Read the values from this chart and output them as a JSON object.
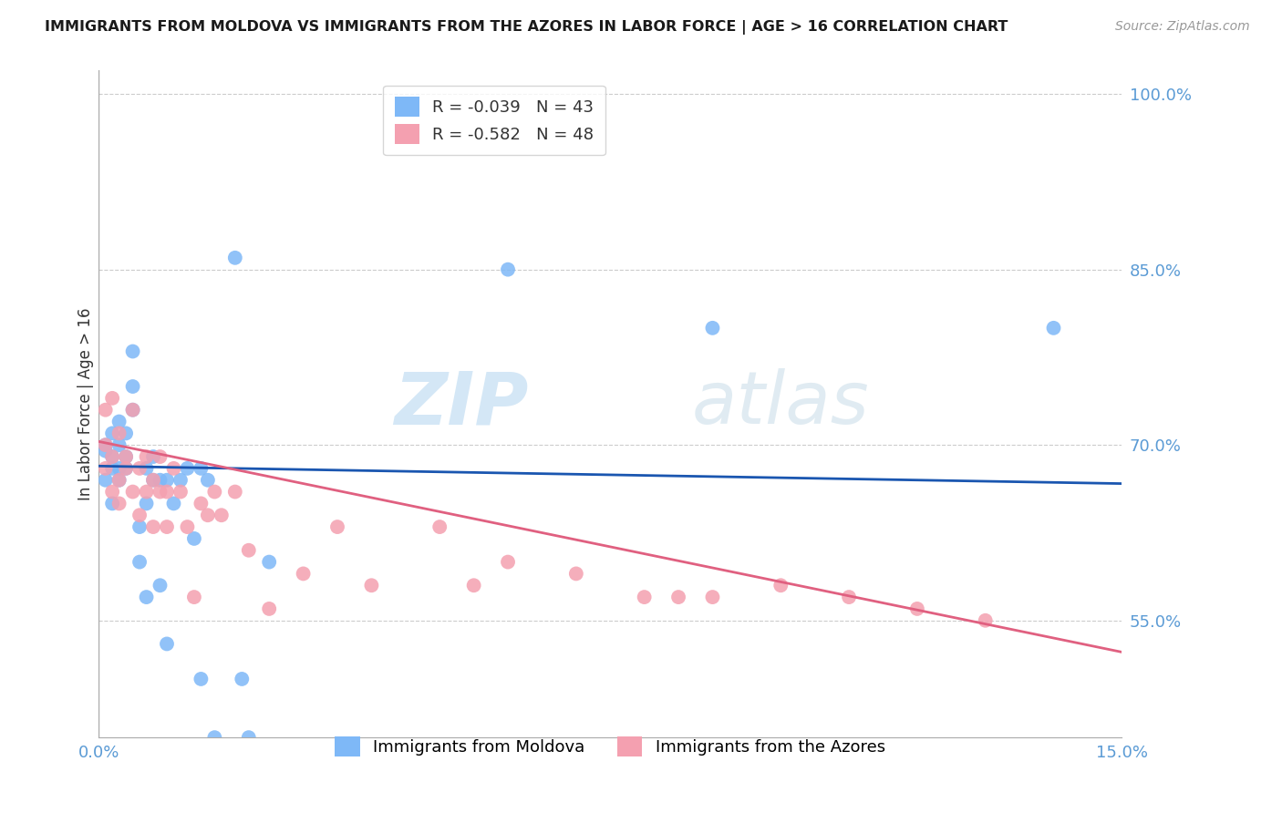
{
  "title": "IMMIGRANTS FROM MOLDOVA VS IMMIGRANTS FROM THE AZORES IN LABOR FORCE | AGE > 16 CORRELATION CHART",
  "source_text": "Source: ZipAtlas.com",
  "ylabel": "In Labor Force | Age > 16",
  "xlim": [
    0.0,
    0.15
  ],
  "ylim": [
    0.45,
    1.02
  ],
  "yticks": [
    0.55,
    0.7,
    0.85,
    1.0
  ],
  "ytick_labels": [
    "55.0%",
    "70.0%",
    "85.0%",
    "100.0%"
  ],
  "xticks": [
    0.0,
    0.05,
    0.1,
    0.15
  ],
  "xtick_labels": [
    "0.0%",
    "",
    "",
    "15.0%"
  ],
  "legend_r_moldova": "R = -0.039",
  "legend_n_moldova": "N = 43",
  "legend_r_azores": "R = -0.582",
  "legend_n_azores": "N = 48",
  "color_moldova": "#7eb8f7",
  "color_azores": "#f4a0b0",
  "line_color_moldova": "#1a56b0",
  "line_color_azores": "#e06080",
  "watermark_zip": "ZIP",
  "watermark_atlas": "atlas",
  "background_color": "#ffffff",
  "grid_color": "#cccccc",
  "moldova_x": [
    0.001,
    0.001,
    0.001,
    0.002,
    0.002,
    0.002,
    0.002,
    0.003,
    0.003,
    0.003,
    0.003,
    0.004,
    0.004,
    0.004,
    0.005,
    0.005,
    0.005,
    0.006,
    0.006,
    0.007,
    0.007,
    0.007,
    0.008,
    0.008,
    0.009,
    0.009,
    0.01,
    0.01,
    0.011,
    0.012,
    0.013,
    0.014,
    0.015,
    0.015,
    0.016,
    0.017,
    0.02,
    0.021,
    0.022,
    0.025,
    0.06,
    0.09,
    0.14
  ],
  "moldova_y": [
    0.695,
    0.7,
    0.67,
    0.71,
    0.68,
    0.69,
    0.65,
    0.68,
    0.7,
    0.72,
    0.67,
    0.69,
    0.71,
    0.68,
    0.75,
    0.78,
    0.73,
    0.63,
    0.6,
    0.68,
    0.65,
    0.57,
    0.67,
    0.69,
    0.67,
    0.58,
    0.67,
    0.53,
    0.65,
    0.67,
    0.68,
    0.62,
    0.5,
    0.68,
    0.67,
    0.45,
    0.86,
    0.5,
    0.45,
    0.6,
    0.85,
    0.8,
    0.8
  ],
  "azores_x": [
    0.001,
    0.001,
    0.001,
    0.002,
    0.002,
    0.002,
    0.003,
    0.003,
    0.003,
    0.004,
    0.004,
    0.005,
    0.005,
    0.006,
    0.006,
    0.007,
    0.007,
    0.008,
    0.008,
    0.009,
    0.009,
    0.01,
    0.01,
    0.011,
    0.012,
    0.013,
    0.014,
    0.015,
    0.016,
    0.017,
    0.018,
    0.02,
    0.022,
    0.025,
    0.03,
    0.035,
    0.04,
    0.05,
    0.055,
    0.06,
    0.07,
    0.08,
    0.085,
    0.09,
    0.1,
    0.11,
    0.12,
    0.13
  ],
  "azores_y": [
    0.7,
    0.68,
    0.73,
    0.74,
    0.69,
    0.66,
    0.71,
    0.67,
    0.65,
    0.69,
    0.68,
    0.73,
    0.66,
    0.68,
    0.64,
    0.69,
    0.66,
    0.67,
    0.63,
    0.66,
    0.69,
    0.66,
    0.63,
    0.68,
    0.66,
    0.63,
    0.57,
    0.65,
    0.64,
    0.66,
    0.64,
    0.66,
    0.61,
    0.56,
    0.59,
    0.63,
    0.58,
    0.63,
    0.58,
    0.6,
    0.59,
    0.57,
    0.57,
    0.57,
    0.58,
    0.57,
    0.56,
    0.55
  ],
  "moldova_line_x": [
    0.0,
    0.15
  ],
  "moldova_line_y": [
    0.682,
    0.667
  ],
  "azores_line_x": [
    0.0,
    0.15
  ],
  "azores_line_y": [
    0.703,
    0.523
  ]
}
